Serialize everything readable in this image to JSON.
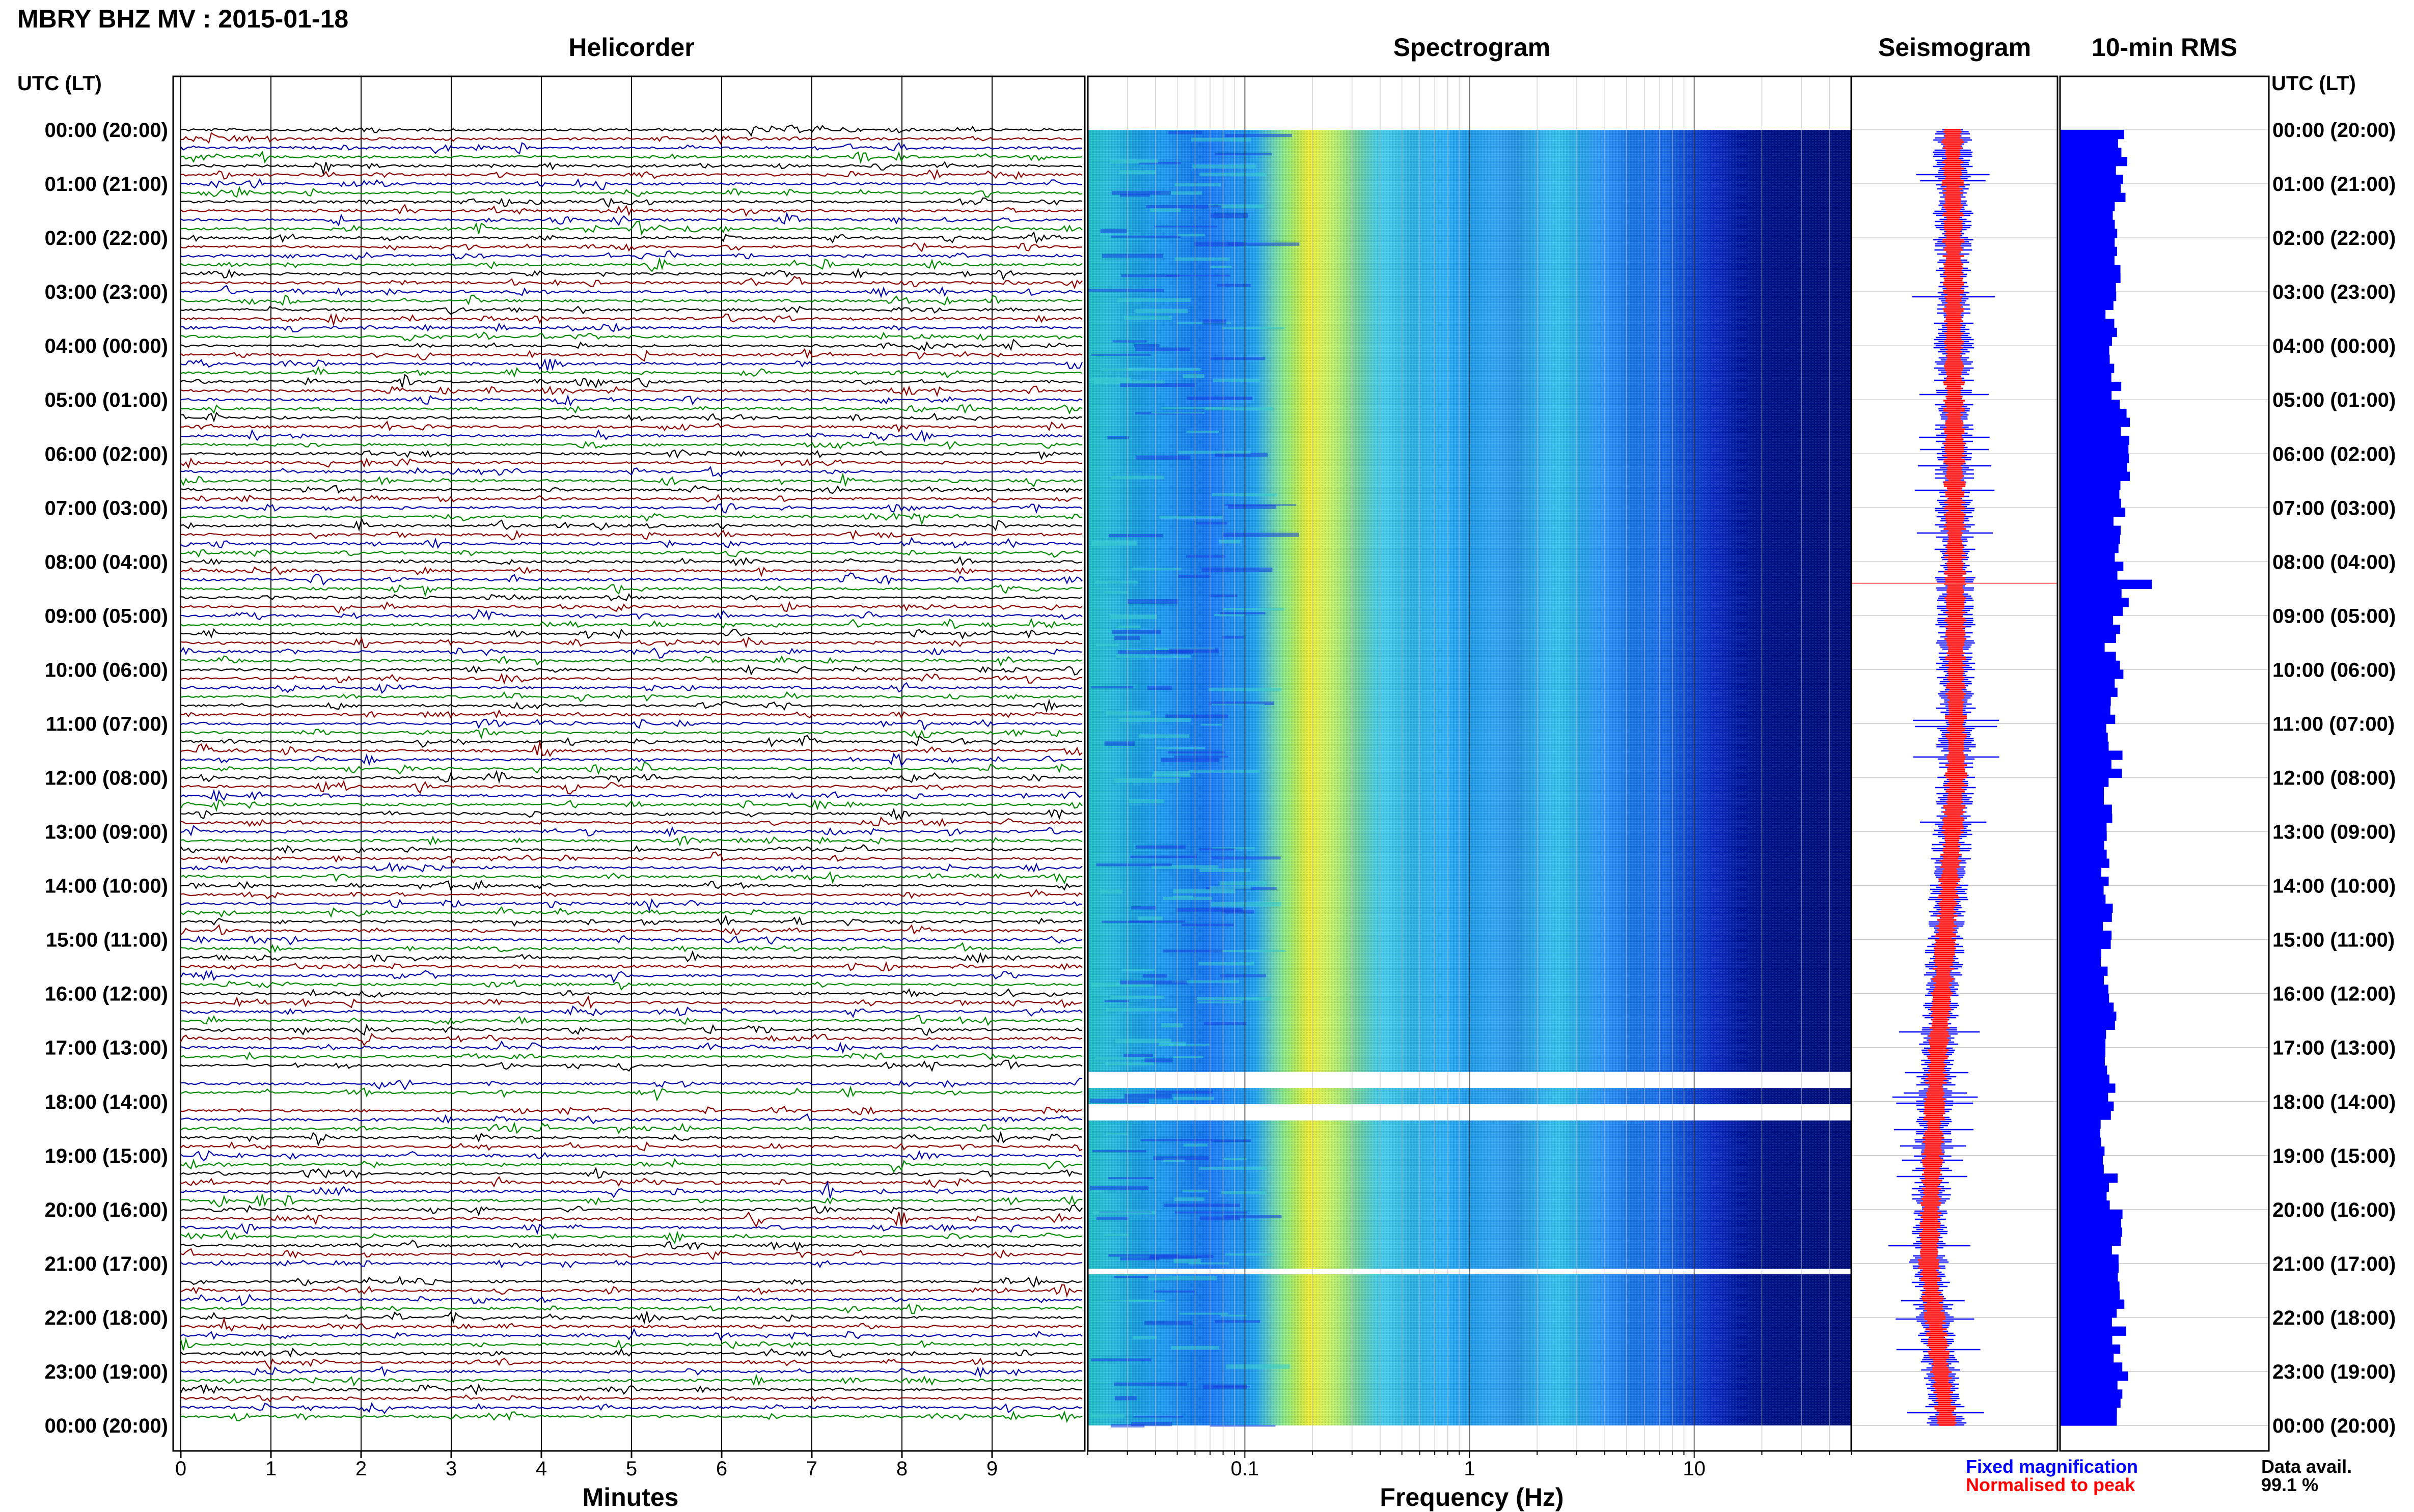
{
  "title": "MBRY BHZ MV : 2015-01-18",
  "time_axis_label": "UTC (LT)",
  "time_labels": [
    "00:00 (20:00)",
    "01:00 (21:00)",
    "02:00 (22:00)",
    "03:00 (23:00)",
    "04:00 (00:00)",
    "05:00 (01:00)",
    "06:00 (02:00)",
    "07:00 (03:00)",
    "08:00 (04:00)",
    "09:00 (05:00)",
    "10:00 (06:00)",
    "11:00 (07:00)",
    "12:00 (08:00)",
    "13:00 (09:00)",
    "14:00 (10:00)",
    "15:00 (11:00)",
    "16:00 (12:00)",
    "17:00 (13:00)",
    "18:00 (14:00)",
    "19:00 (15:00)",
    "20:00 (16:00)",
    "21:00 (17:00)",
    "22:00 (18:00)",
    "23:00 (19:00)",
    "00:00 (20:00)"
  ],
  "panels": {
    "helicorder": {
      "title": "Helicorder",
      "xlabel": "Minutes"
    },
    "spectrogram": {
      "title": "Spectrogram",
      "xlabel": "Frequency (Hz)"
    },
    "seismogram": {
      "title": "Seismogram"
    },
    "rms": {
      "title": "10-min RMS"
    }
  },
  "legend": {
    "fixed": "Fixed magnification",
    "normalised": "Normalised to peak"
  },
  "data_avail": {
    "label": "Data avail.",
    "value": "99.1 %"
  },
  "colors": {
    "helicorder_traces": [
      "#000000",
      "#8b0000",
      "#0000aa",
      "#008800"
    ],
    "rms_bars": "#0000ff",
    "seis_fixed": "#0000ff",
    "seis_norm": "#ff0000"
  },
  "chart_data": [
    {
      "type": "line",
      "name": "helicorder",
      "title": "Helicorder",
      "xlabel": "Minutes",
      "xlim": [
        0,
        10
      ],
      "x_ticks": [
        0,
        1,
        2,
        3,
        4,
        5,
        6,
        7,
        8,
        9
      ],
      "rows": 144,
      "row_minutes": 10,
      "gaps_hours": [
        [
          17.4,
          17.65
        ],
        [
          18.0,
          18.15
        ],
        [
          21.1,
          21.2
        ]
      ]
    },
    {
      "type": "heatmap",
      "name": "spectrogram",
      "title": "Spectrogram",
      "xlabel": "Frequency (Hz)",
      "x_scale": "log",
      "xlim": [
        0.02,
        50
      ],
      "x_ticks": [
        0.1,
        1,
        10
      ],
      "x_tick_labels": [
        "0.1",
        "1",
        "10"
      ],
      "ylim_hours": [
        0,
        24
      ],
      "gaps_hours": [
        [
          17.45,
          17.75
        ],
        [
          18.05,
          18.35
        ],
        [
          21.1,
          21.2
        ]
      ],
      "note": "energy peaks near 0.2 Hz (microseism), low above 20 Hz"
    },
    {
      "type": "line",
      "name": "seismogram",
      "title": "Seismogram",
      "series": [
        {
          "name": "Fixed magnification",
          "color": "#0000ff"
        },
        {
          "name": "Normalised to peak",
          "color": "#ff0000"
        }
      ]
    },
    {
      "type": "bar",
      "name": "rms",
      "title": "10-min RMS",
      "orientation": "horizontal",
      "interval_minutes": 10,
      "hour_values": [
        5.9,
        5.8,
        5.3,
        4.9,
        5.2,
        5.9,
        6.1,
        5.7,
        5.9,
        5.0,
        5.3,
        5.2,
        4.7,
        4.5,
        4.3,
        4.2,
        4.7,
        4.6,
        4.5,
        4.8,
        5.4,
        5.6,
        5.7,
        5.9
      ],
      "spike_hour": 8.4,
      "spike_value": 8.8
    }
  ]
}
